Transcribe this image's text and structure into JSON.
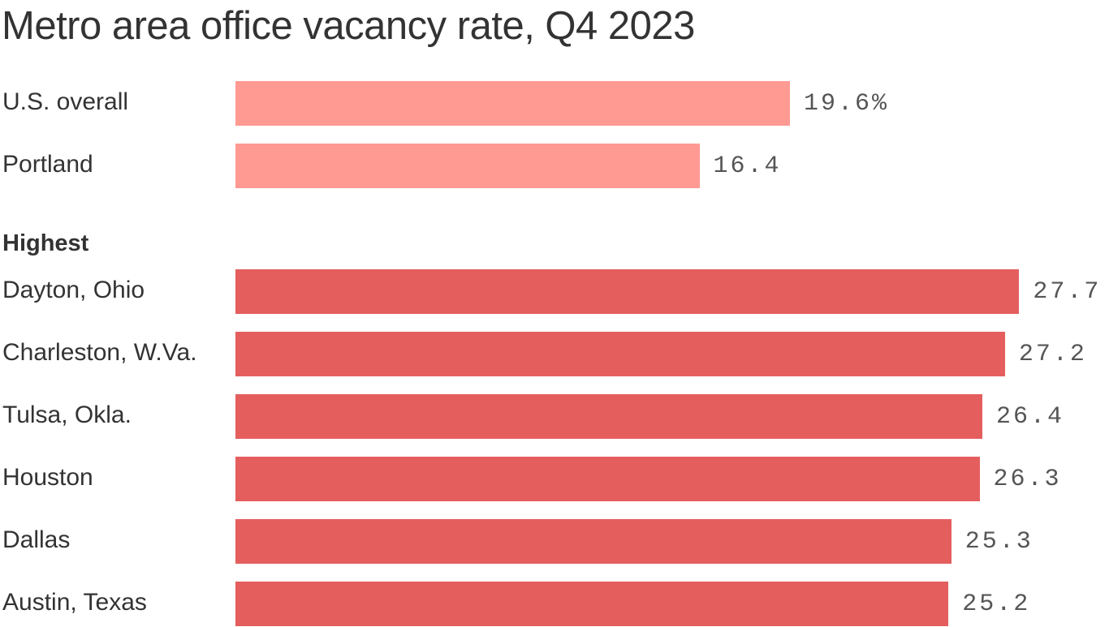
{
  "chart_data": {
    "type": "bar",
    "orientation": "horizontal",
    "title": "Metro area office vacancy rate, Q4 2023",
    "unit_suffix_first": "%",
    "xlim": [
      0,
      30
    ],
    "grid": false,
    "groups": [
      {
        "label": "",
        "color": "#ff9a93",
        "categories": [
          "U.S. overall",
          "Portland"
        ],
        "values": [
          19.6,
          16.4
        ],
        "value_labels": [
          "19.6%",
          "16.4"
        ]
      },
      {
        "label": "Highest",
        "color": "#e55e5e",
        "categories": [
          "Dayton, Ohio",
          "Charleston, W.Va.",
          "Tulsa, Okla.",
          "Houston",
          "Dallas",
          "Austin, Texas"
        ],
        "values": [
          27.7,
          27.2,
          26.4,
          26.3,
          25.3,
          25.2
        ],
        "value_labels": [
          "27.7",
          "27.2",
          "26.4",
          "26.3",
          "25.3",
          "25.2"
        ]
      }
    ]
  }
}
